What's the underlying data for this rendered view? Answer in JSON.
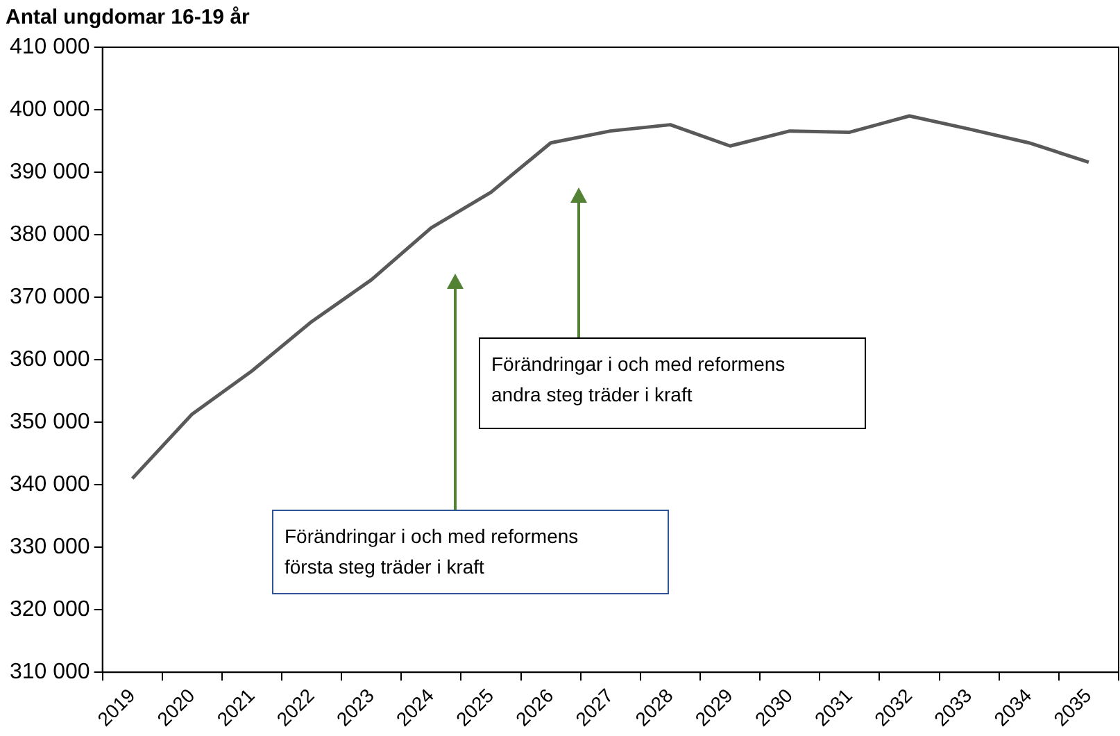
{
  "chart_data": {
    "type": "line",
    "title": "Antal ungdomar 16-19 år",
    "categories": [
      "2019",
      "2020",
      "2021",
      "2022",
      "2023",
      "2024",
      "2025",
      "2026",
      "2027",
      "2028",
      "2029",
      "2030",
      "2031",
      "2032",
      "2033",
      "2034",
      "2035"
    ],
    "series": [
      {
        "color": "#595959",
        "values": [
          341000,
          351300,
          358200,
          366100,
          372800,
          381100,
          386800,
          394700,
          396600,
          397600,
          394200,
          396600,
          396400,
          399000,
          396900,
          394700,
          391600
        ]
      }
    ],
    "ylim": [
      310000,
      410000
    ],
    "yticks": [
      {
        "value": 310000,
        "label": "310 000"
      },
      {
        "value": 320000,
        "label": "320 000"
      },
      {
        "value": 330000,
        "label": "330 000"
      },
      {
        "value": 340000,
        "label": "340 000"
      },
      {
        "value": 350000,
        "label": "350 000"
      },
      {
        "value": 360000,
        "label": "360 000"
      },
      {
        "value": 370000,
        "label": "370 000"
      },
      {
        "value": 380000,
        "label": "380 000"
      },
      {
        "value": 390000,
        "label": "390 000"
      },
      {
        "value": 400000,
        "label": "400 000"
      },
      {
        "value": 410000,
        "label": "410 000"
      }
    ],
    "annotations": [
      "Förändringar i och med reformens första steg träder i kraft",
      "Förändringar i och med reformens andra steg träder i kraft"
    ],
    "grid": false,
    "legend": false,
    "marker": "none",
    "line_style": "solid"
  }
}
